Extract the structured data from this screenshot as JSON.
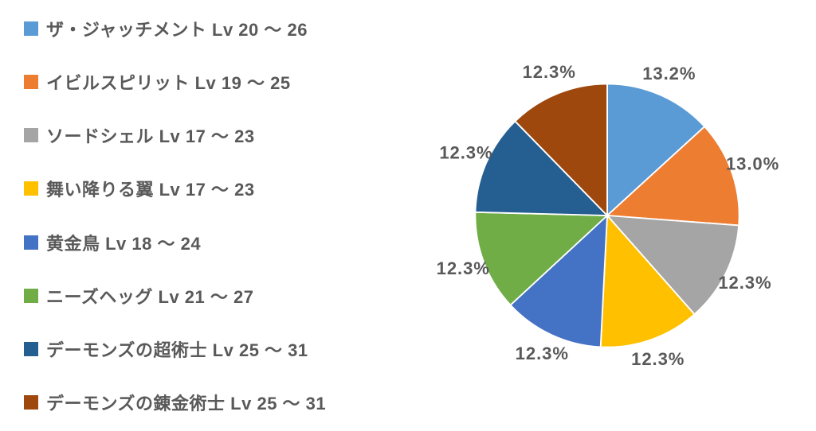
{
  "chart": {
    "type": "pie",
    "background_color": "#ffffff",
    "label_color": "#595959",
    "legend_font_size": 22,
    "slice_label_font_size": 24,
    "pie_radius": 180,
    "label_radius": 210,
    "start_angle_deg": -90,
    "slices": [
      {
        "label": "ザ・ジャッチメント Lv 20 ～ 26",
        "value": 13.2,
        "pct_text": "13.2%",
        "color": "#5b9bd5"
      },
      {
        "label": "イビルスピリット Lv 19 ～ 25",
        "value": 13.0,
        "pct_text": "13.0%",
        "color": "#ed7d31"
      },
      {
        "label": "ソードシェル Lv 17 ～ 23",
        "value": 12.3,
        "pct_text": "12.3%",
        "color": "#a5a5a5"
      },
      {
        "label": "舞い降りる翼 Lv 17 ～ 23",
        "value": 12.3,
        "pct_text": "12.3%",
        "color": "#ffc000"
      },
      {
        "label": "黄金鳥 Lv 18 ～ 24",
        "value": 12.3,
        "pct_text": "12.3%",
        "color": "#4472c4"
      },
      {
        "label": "ニーズヘッグ Lv 21 ～ 27",
        "value": 12.3,
        "pct_text": "12.3%",
        "color": "#70ad47"
      },
      {
        "label": "デーモンズの超術士 Lv 25 ～ 31",
        "value": 12.3,
        "pct_text": "12.3%",
        "color": "#255e91"
      },
      {
        "label": "デーモンズの錬金術士 Lv 25 ～ 31",
        "value": 12.3,
        "pct_text": "12.3%",
        "color": "#9e480e"
      }
    ]
  }
}
